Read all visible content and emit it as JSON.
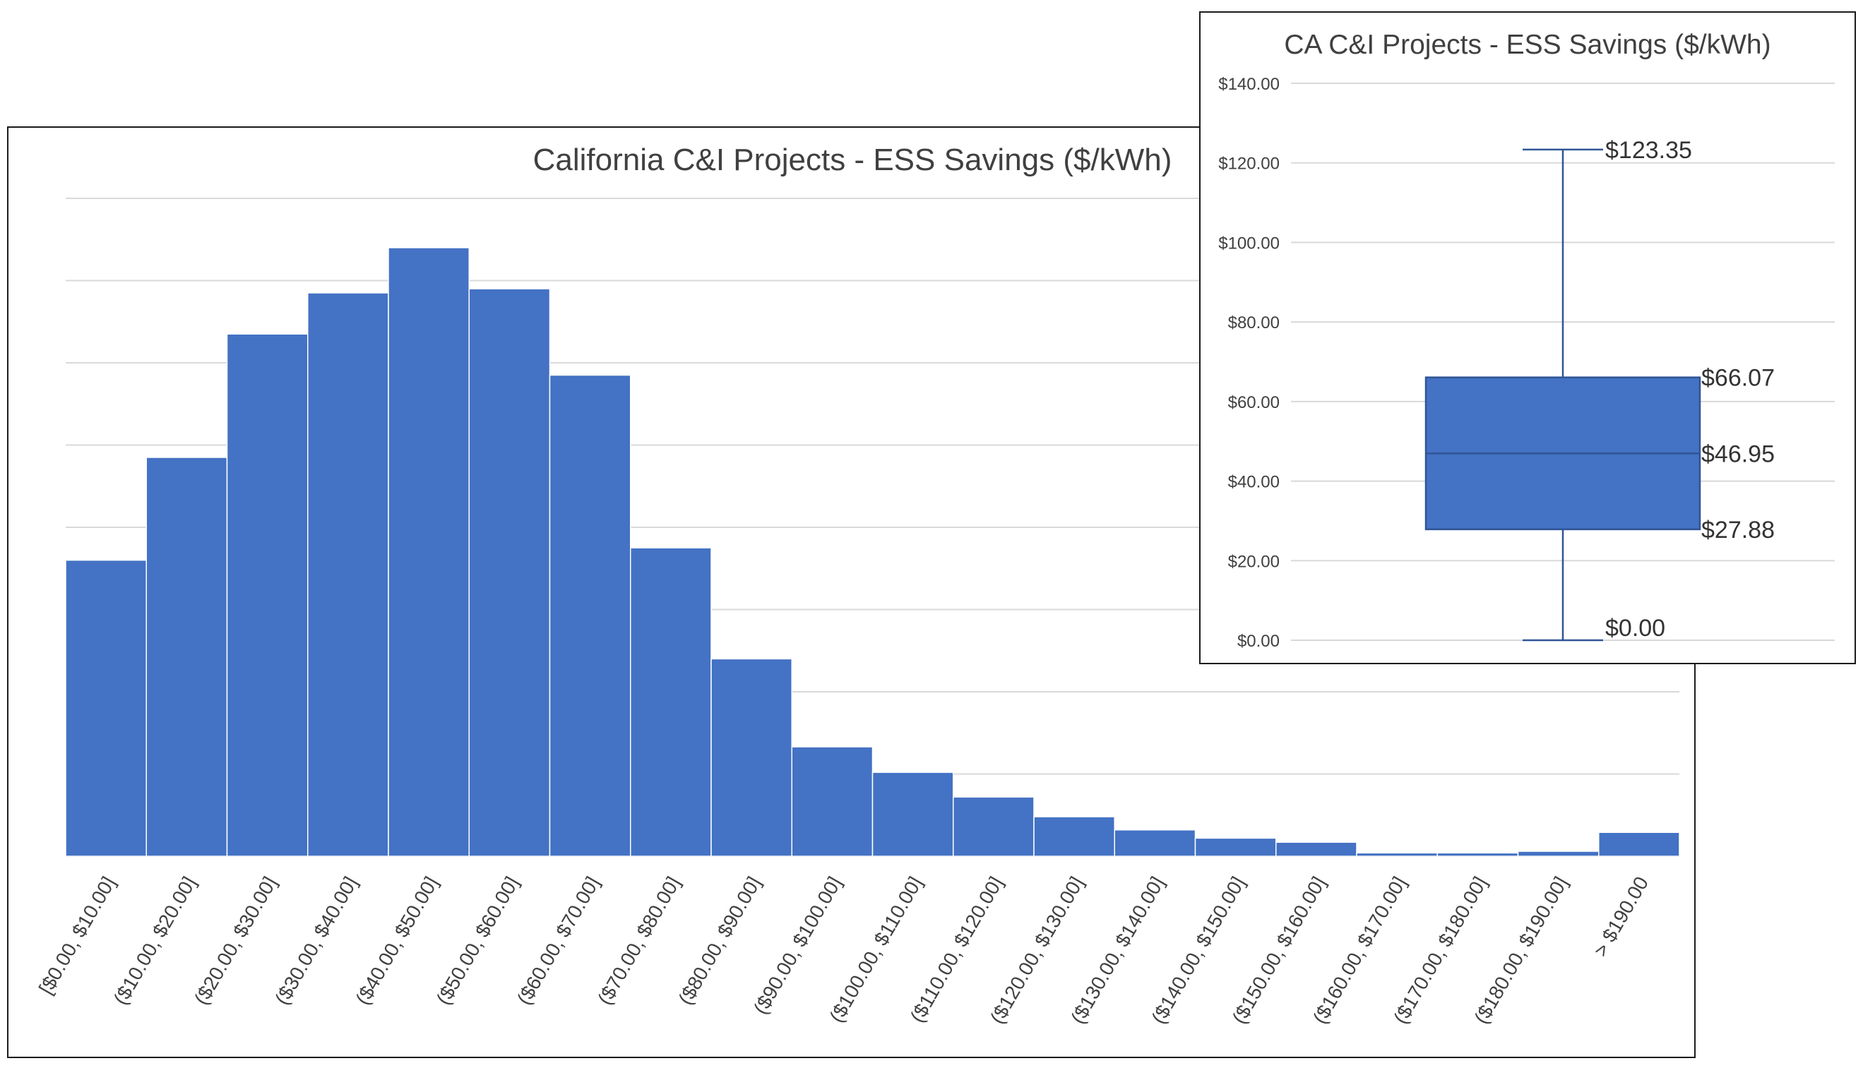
{
  "chart_data": [
    {
      "type": "bar",
      "title": "California C&I Projects - ESS Savings ($/kWh)",
      "xlabel": "",
      "ylabel": "",
      "grid": true,
      "color": "#4472C4",
      "categories": [
        "[$0.00, $10.00]",
        "($10.00, $20.00]",
        "($20.00, $30.00]",
        "($30.00, $40.00]",
        "($40.00, $50.00]",
        "($50.00, $60.00]",
        "($60.00, $70.00]",
        "($70.00, $80.00]",
        "($80.00, $90.00]",
        "($90.00, $100.00]",
        "($100.00, $110.00]",
        "($110.00, $120.00]",
        "($120.00, $130.00]",
        "($130.00, $140.00]",
        "($140.00, $150.00]",
        "($150.00, $160.00]",
        "($160.00, $170.00]",
        "($170.00, $180.00]",
        "($180.00, $190.00]",
        "> $190.00"
      ],
      "values": [
        36,
        48.5,
        63.5,
        68.5,
        74,
        69,
        58.5,
        37.5,
        24,
        13.3,
        10.2,
        7.2,
        4.8,
        3.2,
        2.2,
        1.7,
        0.4,
        0.4,
        0.6,
        2.9
      ],
      "ylim": [
        0,
        80
      ]
    },
    {
      "type": "box",
      "title": "CA C&I Projects - ESS Savings ($/kWh)",
      "ylim": [
        0,
        140
      ],
      "yticks": [
        "$0.00",
        "$20.00",
        "$40.00",
        "$60.00",
        "$80.00",
        "$100.00",
        "$120.00",
        "$140.00"
      ],
      "grid": true,
      "color": "#4472C4",
      "min": 0.0,
      "q1": 27.88,
      "median": 46.95,
      "q3": 66.07,
      "max": 123.35,
      "labels": {
        "max": "$123.35",
        "q3": "$66.07",
        "median": "$46.95",
        "q1": "$27.88",
        "min": "$0.00"
      }
    }
  ]
}
